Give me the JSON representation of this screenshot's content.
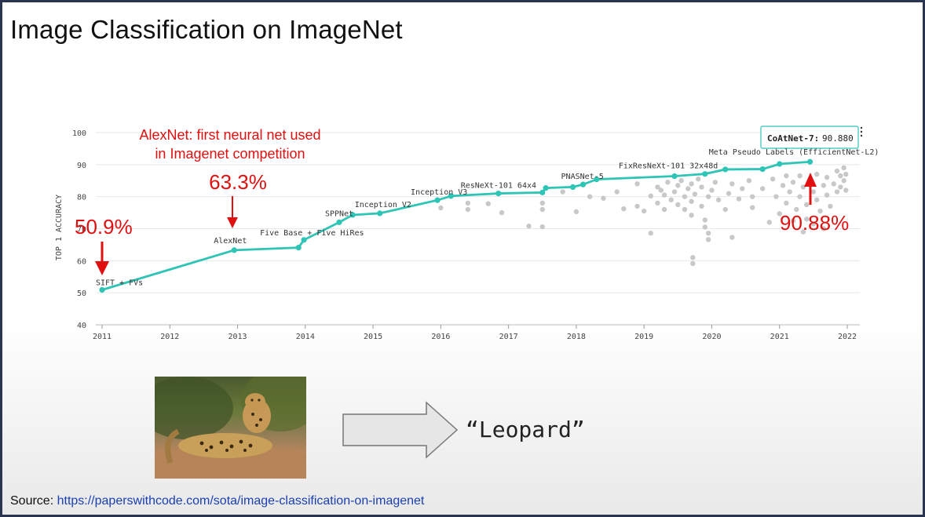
{
  "slide": {
    "title": "Image Classification on ImageNet",
    "source_label": "Source:",
    "source_url": "https://paperswithcode.com/sota/image-classification-on-imagenet",
    "output_label": "“Leopard”"
  },
  "annotations": {
    "alexnet_note_line1": "AlexNet: first neural net used",
    "alexnet_note_line2": "in Imagenet competition",
    "pct_2011": "50.9%",
    "pct_2013": "63.3%",
    "pct_2021": "90.88%",
    "tooltip_name": "CoAtNet-7:",
    "tooltip_value": "90.880"
  },
  "chart_data": {
    "type": "line",
    "ylabel": "TOP 1 ACCURACY",
    "xlabel": "",
    "xlim": [
      2011,
      2022
    ],
    "ylim": [
      40,
      100
    ],
    "x_ticks": [
      "2011",
      "2012",
      "2013",
      "2014",
      "2015",
      "2016",
      "2017",
      "2018",
      "2019",
      "2020",
      "2021",
      "2022"
    ],
    "y_ticks": [
      "40",
      "50",
      "60",
      "70",
      "80",
      "90",
      "100"
    ],
    "grid": true,
    "line_color": "#2ec4b6",
    "scatter_color": "#c8c8c8",
    "series": [
      {
        "points": [
          {
            "x": 2011.0,
            "y": 50.9
          },
          {
            "x": 2012.95,
            "y": 63.3
          },
          {
            "x": 2013.9,
            "y": 64.1
          },
          {
            "x": 2013.98,
            "y": 66.5
          },
          {
            "x": 2014.5,
            "y": 72.0
          },
          {
            "x": 2014.7,
            "y": 74.3
          },
          {
            "x": 2015.1,
            "y": 74.8
          },
          {
            "x": 2015.95,
            "y": 78.9
          },
          {
            "x": 2016.15,
            "y": 80.2
          },
          {
            "x": 2016.85,
            "y": 81.0
          },
          {
            "x": 2017.5,
            "y": 81.3
          },
          {
            "x": 2017.55,
            "y": 82.7
          },
          {
            "x": 2017.95,
            "y": 83.0
          },
          {
            "x": 2018.1,
            "y": 83.8
          },
          {
            "x": 2018.3,
            "y": 85.4
          },
          {
            "x": 2019.45,
            "y": 86.4
          },
          {
            "x": 2019.9,
            "y": 87.1
          },
          {
            "x": 2020.2,
            "y": 88.5
          },
          {
            "x": 2020.75,
            "y": 88.6
          },
          {
            "x": 2021.0,
            "y": 90.2
          },
          {
            "x": 2021.45,
            "y": 90.88
          }
        ]
      }
    ],
    "point_labels": [
      {
        "text": "SIFT + FVs",
        "x": 2011.0,
        "y": 50.9
      },
      {
        "text": "AlexNet",
        "x": 2012.95,
        "y": 63.3
      },
      {
        "text": "Five Base + Five HiRes",
        "x": 2013.98,
        "y": 66.5
      },
      {
        "text": "SPPNet",
        "x": 2014.5,
        "y": 72.0
      },
      {
        "text": "Inception V2",
        "x": 2015.1,
        "y": 74.8
      },
      {
        "text": "Inception V3",
        "x": 2015.95,
        "y": 78.9
      },
      {
        "text": "ResNeXt-101 64x4",
        "x": 2016.85,
        "y": 81.0
      },
      {
        "text": "PNASNet-5",
        "x": 2018.1,
        "y": 83.8
      },
      {
        "text": "FixResNeXt-101 32x48d",
        "x": 2019.9,
        "y": 87.1
      },
      {
        "text": "Meta Pseudo Labels (EfficientNet-L2)",
        "x": 2021.0,
        "y": 90.2
      }
    ],
    "other_models": [
      {
        "x": 2016.0,
        "y": 76.5
      },
      {
        "x": 2016.4,
        "y": 78.0
      },
      {
        "x": 2016.4,
        "y": 76.0
      },
      {
        "x": 2016.7,
        "y": 77.8
      },
      {
        "x": 2016.9,
        "y": 75.0
      },
      {
        "x": 2017.3,
        "y": 70.8
      },
      {
        "x": 2017.5,
        "y": 70.6
      },
      {
        "x": 2017.5,
        "y": 78.0
      },
      {
        "x": 2017.5,
        "y": 76.0
      },
      {
        "x": 2017.8,
        "y": 81.5
      },
      {
        "x": 2018.0,
        "y": 75.3
      },
      {
        "x": 2018.2,
        "y": 80.0
      },
      {
        "x": 2018.4,
        "y": 79.5
      },
      {
        "x": 2018.6,
        "y": 81.5
      },
      {
        "x": 2018.7,
        "y": 76.2
      },
      {
        "x": 2018.9,
        "y": 84.0
      },
      {
        "x": 2018.9,
        "y": 77.0
      },
      {
        "x": 2019.0,
        "y": 75.5
      },
      {
        "x": 2019.1,
        "y": 80.2
      },
      {
        "x": 2019.1,
        "y": 68.6
      },
      {
        "x": 2019.2,
        "y": 83.0
      },
      {
        "x": 2019.2,
        "y": 78.0
      },
      {
        "x": 2019.25,
        "y": 82.0
      },
      {
        "x": 2019.3,
        "y": 80.5
      },
      {
        "x": 2019.3,
        "y": 76.0
      },
      {
        "x": 2019.35,
        "y": 84.5
      },
      {
        "x": 2019.4,
        "y": 79.0
      },
      {
        "x": 2019.45,
        "y": 81.5
      },
      {
        "x": 2019.5,
        "y": 83.5
      },
      {
        "x": 2019.5,
        "y": 77.5
      },
      {
        "x": 2019.55,
        "y": 85.0
      },
      {
        "x": 2019.6,
        "y": 80.0
      },
      {
        "x": 2019.6,
        "y": 76.0
      },
      {
        "x": 2019.65,
        "y": 82.5
      },
      {
        "x": 2019.7,
        "y": 84.0
      },
      {
        "x": 2019.7,
        "y": 78.5
      },
      {
        "x": 2019.75,
        "y": 80.8
      },
      {
        "x": 2019.7,
        "y": 74.2
      },
      {
        "x": 2019.72,
        "y": 61.0
      },
      {
        "x": 2019.72,
        "y": 59.1
      },
      {
        "x": 2019.8,
        "y": 85.5
      },
      {
        "x": 2019.85,
        "y": 83.0
      },
      {
        "x": 2019.85,
        "y": 77.0
      },
      {
        "x": 2019.9,
        "y": 72.7
      },
      {
        "x": 2019.9,
        "y": 70.5
      },
      {
        "x": 2019.95,
        "y": 80.0
      },
      {
        "x": 2019.95,
        "y": 66.6
      },
      {
        "x": 2019.95,
        "y": 68.6
      },
      {
        "x": 2020.0,
        "y": 82.0
      },
      {
        "x": 2020.05,
        "y": 84.5
      },
      {
        "x": 2020.1,
        "y": 79.0
      },
      {
        "x": 2020.2,
        "y": 76.0
      },
      {
        "x": 2020.25,
        "y": 81.0
      },
      {
        "x": 2020.3,
        "y": 84.0
      },
      {
        "x": 2020.3,
        "y": 67.3
      },
      {
        "x": 2020.4,
        "y": 79.3
      },
      {
        "x": 2020.45,
        "y": 82.5
      },
      {
        "x": 2020.55,
        "y": 85.0
      },
      {
        "x": 2020.6,
        "y": 80.0
      },
      {
        "x": 2020.6,
        "y": 76.6
      },
      {
        "x": 2020.75,
        "y": 82.5
      },
      {
        "x": 2020.85,
        "y": 72.0
      },
      {
        "x": 2020.9,
        "y": 85.5
      },
      {
        "x": 2020.95,
        "y": 80.0
      },
      {
        "x": 2021.0,
        "y": 74.7
      },
      {
        "x": 2021.05,
        "y": 83.5
      },
      {
        "x": 2021.1,
        "y": 86.5
      },
      {
        "x": 2021.1,
        "y": 78.0
      },
      {
        "x": 2021.15,
        "y": 81.5
      },
      {
        "x": 2021.2,
        "y": 84.5
      },
      {
        "x": 2021.2,
        "y": 72.5
      },
      {
        "x": 2021.25,
        "y": 76.0
      },
      {
        "x": 2021.3,
        "y": 80.0
      },
      {
        "x": 2021.3,
        "y": 86.5
      },
      {
        "x": 2021.35,
        "y": 83.0
      },
      {
        "x": 2021.35,
        "y": 69.0
      },
      {
        "x": 2021.4,
        "y": 77.5
      },
      {
        "x": 2021.4,
        "y": 73.0
      },
      {
        "x": 2021.45,
        "y": 84.8
      },
      {
        "x": 2021.5,
        "y": 81.5
      },
      {
        "x": 2021.5,
        "y": 71.5
      },
      {
        "x": 2021.55,
        "y": 87.0
      },
      {
        "x": 2021.55,
        "y": 79.0
      },
      {
        "x": 2021.6,
        "y": 75.5
      },
      {
        "x": 2021.65,
        "y": 83.5
      },
      {
        "x": 2021.65,
        "y": 70.0
      },
      {
        "x": 2021.7,
        "y": 86.0
      },
      {
        "x": 2021.7,
        "y": 80.5
      },
      {
        "x": 2021.75,
        "y": 77.0
      },
      {
        "x": 2021.8,
        "y": 84.0
      },
      {
        "x": 2021.85,
        "y": 88.0
      },
      {
        "x": 2021.85,
        "y": 81.5
      },
      {
        "x": 2021.9,
        "y": 86.5
      },
      {
        "x": 2021.9,
        "y": 83.0
      },
      {
        "x": 2021.95,
        "y": 85.0
      },
      {
        "x": 2021.95,
        "y": 89.0
      },
      {
        "x": 2021.98,
        "y": 82.0
      },
      {
        "x": 2021.98,
        "y": 87.0
      }
    ]
  }
}
